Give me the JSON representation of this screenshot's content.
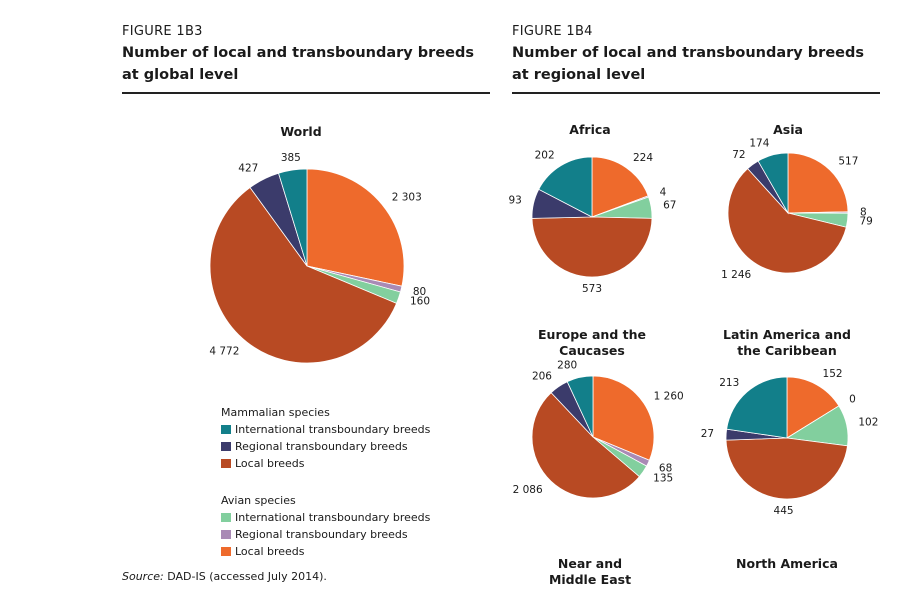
{
  "figures": [
    {
      "label": "FIGURE 1B3",
      "title": "Number of local and transboundary breeds at global level"
    },
    {
      "label": "FIGURE 1B4",
      "title": "Number of local and transboundary breeds at regional level"
    }
  ],
  "legend": {
    "groups": [
      {
        "title": "Mammalian species",
        "items": [
          {
            "name": "International transboundary breeds",
            "color": "#127f8a"
          },
          {
            "name": "Regional transboundary breeds",
            "color": "#3b3b6b"
          },
          {
            "name": "Local breeds",
            "color": "#b84a23"
          }
        ]
      },
      {
        "title": "Avian species",
        "items": [
          {
            "name": "International transboundary breeds",
            "color": "#82cf9e"
          },
          {
            "name": "Regional transboundary breeds",
            "color": "#a98ab5"
          },
          {
            "name": "Local breeds",
            "color": "#ee6a2c"
          }
        ]
      }
    ]
  },
  "source": {
    "label": "Source:",
    "text": "DAD-IS (accessed July 2014)."
  },
  "chart_data": [
    {
      "type": "pie",
      "title": "World",
      "values": [
        385,
        427,
        4772,
        160,
        80,
        2303
      ],
      "value_labels": [
        "385",
        "427",
        "4 772",
        "160",
        "80",
        "2 303"
      ]
    },
    {
      "type": "pie",
      "title": "Africa",
      "values": [
        202,
        93,
        573,
        67,
        4,
        224
      ]
    },
    {
      "type": "pie",
      "title": "Asia",
      "values": [
        174,
        72,
        1246,
        79,
        8,
        517
      ],
      "value_labels": [
        "174",
        "72",
        "1 246",
        "79",
        "8",
        "517"
      ]
    },
    {
      "type": "pie",
      "title": "Europe and the Caucases",
      "values": [
        280,
        206,
        2086,
        135,
        68,
        1260
      ],
      "value_labels": [
        "280",
        "206",
        "2 086",
        "135",
        "68",
        "1 260"
      ]
    },
    {
      "type": "pie",
      "title": "Latin America and the Caribbean",
      "values": [
        213,
        27,
        445,
        102,
        0,
        152
      ]
    },
    {
      "type": "pie",
      "title": "Near and Middle East"
    },
    {
      "type": "pie",
      "title": "North America"
    }
  ]
}
